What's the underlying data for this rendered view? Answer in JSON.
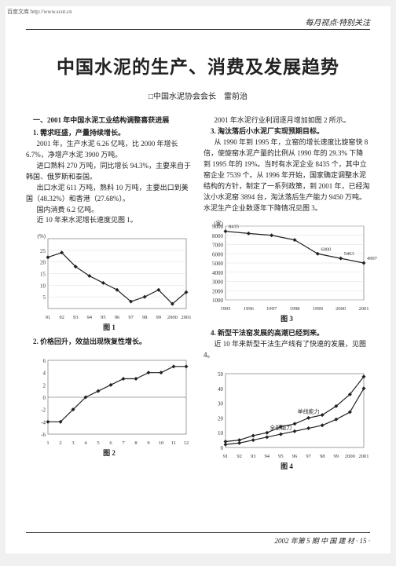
{
  "topbar": "百度文库 http://www.scut.cn",
  "header_right": "每月视点·特别关注",
  "title": "中国水泥的生产、消费及发展趋势",
  "author": "□中国水泥协会会长　雷前治",
  "left": {
    "section": "一、2001 年中国水泥工业结构调整喜获进展",
    "sub1": "1. 需求旺盛，产量持续增长。",
    "p1": "2001 年，生产水泥 6.26 亿吨，比 2000 年增长 6.7%，净增产水泥 3900 万吨。",
    "p2": "进口熟料 270 万吨，同比增长 94.3%，主要来自于韩国、俄罗斯和泰国。",
    "p3": "出口水泥 611 万吨，熟料 10 万吨，主要出口到美国（48.32%）和香港（27.68%）。",
    "p4": "国内消费 6.2 亿吨。",
    "p5": "近 10 年来水泥增长速度见图 1。",
    "sub2": "2. 价格回升，效益出现恢复性增长。"
  },
  "right": {
    "p1": "2001 年水泥行业利润逐月增加如图 2 所示。",
    "sub3": "3. 淘汰落后小水泥厂实现预期目标。",
    "p2": "从 1990 年到 1995 年，立窑的增长速度比旋窑快 8 倍，使旋窑水泥产量的比例从 1990 年的 29.3% 下降到 1995 年的 19%。当时有水泥企业 8435 个，其中立窑企业 7539 个。从 1996 年开始，国家确定调整水泥结构的方针，制定了一系列政策，到 2001 年，已经淘汰小水泥窑 3894 台，淘汰落后生产能力 9450 万吨。水泥生产企业数逐年下降情况见图 3。",
    "sub4": "4. 新型干法窑发展的高潮已经到来。",
    "p3": "近 10 年来新型干法生产线有了快速的发展，见图 4。"
  },
  "chart1": {
    "type": "line",
    "x": [
      "91",
      "92",
      "93",
      "94",
      "95",
      "96",
      "97",
      "98",
      "99",
      "2000",
      "2001"
    ],
    "y": [
      22,
      24,
      18,
      14,
      11,
      8,
      3,
      5,
      8,
      2,
      7
    ],
    "ylabel_unit": "(%)",
    "ylim": [
      0,
      30
    ],
    "yticks": [
      5,
      10,
      15,
      20,
      25
    ],
    "line_color": "#222",
    "marker": "diamond",
    "border_color": "#888",
    "grid_color": "#ddd",
    "caption": "图 1"
  },
  "chart2": {
    "type": "line",
    "x": [
      "1",
      "2",
      "3",
      "4",
      "5",
      "6",
      "7",
      "8",
      "9",
      "10",
      "11",
      "12"
    ],
    "y": [
      -4,
      -4,
      -2,
      0,
      1,
      2,
      3,
      3,
      4,
      4,
      5,
      5
    ],
    "ylim": [
      -6,
      6
    ],
    "yticks": [
      -6,
      -4,
      -2,
      0,
      2,
      4,
      6
    ],
    "line_color": "#222",
    "marker": "diamond",
    "border_color": "#888",
    "caption": "图 2"
  },
  "chart3": {
    "type": "line",
    "x": [
      "1995",
      "1996",
      "1997",
      "1998",
      "1999",
      "2000",
      "2001"
    ],
    "y": [
      8435,
      8200,
      8000,
      7500,
      6000,
      5500,
      5000
    ],
    "annotations": [
      "8435",
      "",
      "",
      "",
      "6000",
      "5463",
      "4997"
    ],
    "ylabel_unit": "(家)",
    "ylim": [
      1000,
      9000
    ],
    "yticks": [
      1000,
      2000,
      3000,
      4000,
      5000,
      6000,
      7000,
      8000,
      9000
    ],
    "line_color": "#222",
    "marker": "diamond",
    "border_color": "#888",
    "grid_color": "#ddd",
    "caption": "图 3"
  },
  "chart4": {
    "type": "multiline",
    "x": [
      "91",
      "92",
      "93",
      "94",
      "95",
      "96",
      "97",
      "98",
      "99",
      "2000",
      "2001"
    ],
    "series": [
      {
        "label": "单线能力",
        "y": [
          4,
          5,
          8,
          10,
          14,
          16,
          20,
          22,
          28,
          36,
          48
        ]
      },
      {
        "label": "全部能力",
        "y": [
          2,
          3,
          5,
          7,
          9,
          11,
          13,
          15,
          19,
          24,
          40
        ]
      }
    ],
    "ylim": [
      0,
      50
    ],
    "yticks": [
      0,
      10,
      20,
      30,
      40,
      50
    ],
    "line_color": "#222",
    "marker": "diamond",
    "border_color": "#888",
    "caption": "图 4"
  },
  "footer": "2002 年第 5 期 中 国 建 材 · 15 ·"
}
